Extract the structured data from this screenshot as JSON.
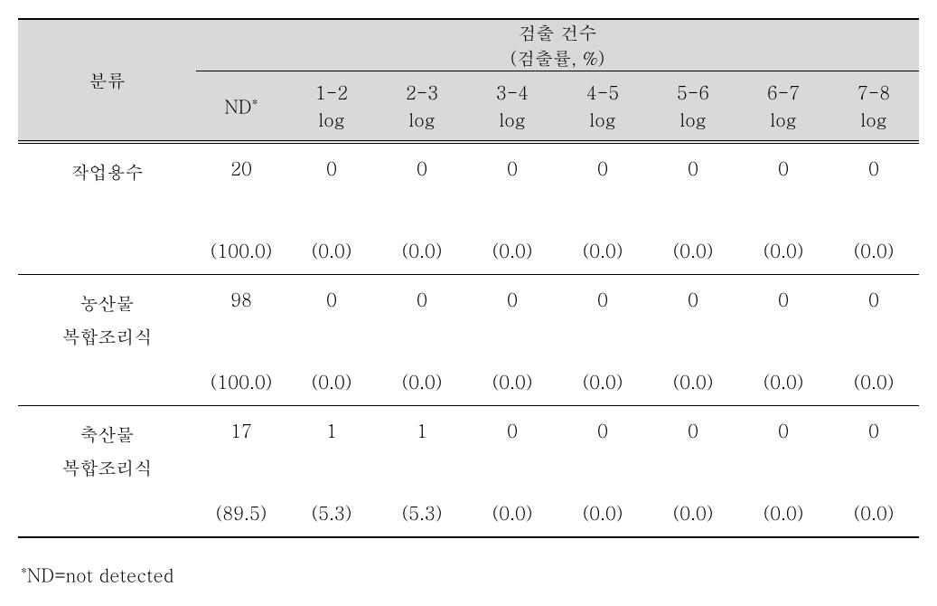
{
  "table": {
    "header": {
      "row_label": "분류",
      "group_label": "검출 건수",
      "group_sub_label": "(검출률, %)",
      "col_labels": [
        "ND",
        "1-2\nlog",
        "2-3\nlog",
        "3-4\nlog",
        "4-5\nlog",
        "5-6\nlog",
        "6-7\nlog",
        "7-8\nlog"
      ],
      "nd_asterisk": "*"
    },
    "rows": [
      {
        "category": "작업용수",
        "counts": [
          "20",
          "0",
          "0",
          "0",
          "0",
          "0",
          "0",
          "0"
        ],
        "rates": [
          "(100.0)",
          "(0.0)",
          "(0.0)",
          "(0.0)",
          "(0.0)",
          "(0.0)",
          "(0.0)",
          "(0.0)"
        ]
      },
      {
        "category": "농산물\n복합조리식",
        "counts": [
          "98",
          "0",
          "0",
          "0",
          "0",
          "0",
          "0",
          "0"
        ],
        "rates": [
          "(100.0)",
          "(0.0)",
          "(0.0)",
          "(0.0)",
          "(0.0)",
          "(0.0)",
          "(0.0)",
          "(0.0)"
        ]
      },
      {
        "category": "축산물\n복합조리식",
        "counts": [
          "17",
          "1",
          "1",
          "0",
          "0",
          "0",
          "0",
          "0"
        ],
        "rates": [
          "(89.5)",
          "(5.3)",
          "(5.3)",
          "(0.0)",
          "(0.0)",
          "(0.0)",
          "(0.0)",
          "(0.0)"
        ]
      }
    ]
  },
  "footnote": {
    "asterisk": "*",
    "text": "ND=not detected"
  },
  "colors": {
    "header_bg": "#d9d9d9",
    "text": "#000000",
    "border": "#000000",
    "background": "#ffffff"
  }
}
